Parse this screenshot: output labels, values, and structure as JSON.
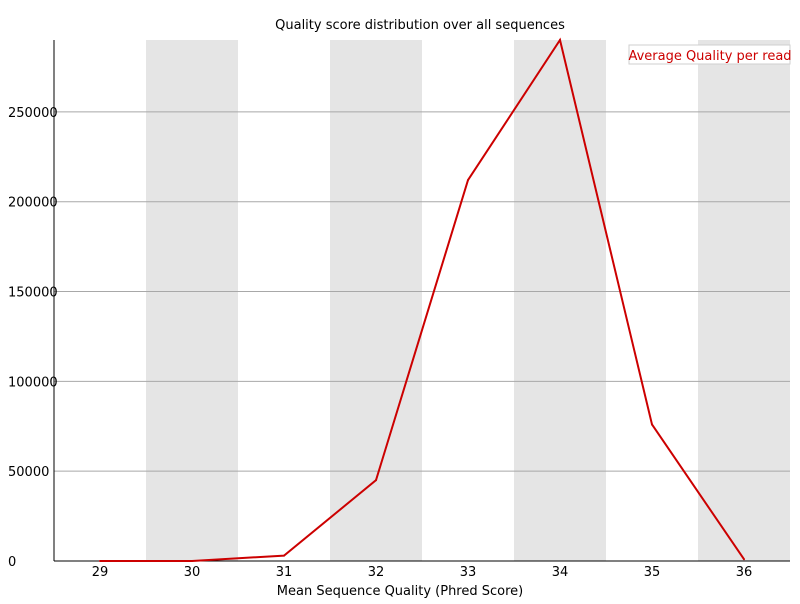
{
  "chart_data": {
    "type": "line",
    "title": "Quality score distribution over all sequences",
    "xlabel": "Mean Sequence Quality (Phred Score)",
    "ylabel": "",
    "categories": [
      "29",
      "30",
      "31",
      "32",
      "33",
      "34",
      "35",
      "36"
    ],
    "x": [
      29,
      30,
      31,
      32,
      33,
      34,
      35,
      36
    ],
    "y_ticks": [
      0,
      50000,
      100000,
      150000,
      200000,
      250000
    ],
    "ylim": [
      0,
      290000
    ],
    "series": [
      {
        "name": "Average Quality per read",
        "color": "#cc0000",
        "values": [
          0,
          0,
          3000,
          45000,
          212000,
          290000,
          76000,
          1000
        ]
      }
    ],
    "grid": "horizontal",
    "alternating_bands": true,
    "band_color": "#e5e5e5",
    "legend_position": "top-right"
  }
}
